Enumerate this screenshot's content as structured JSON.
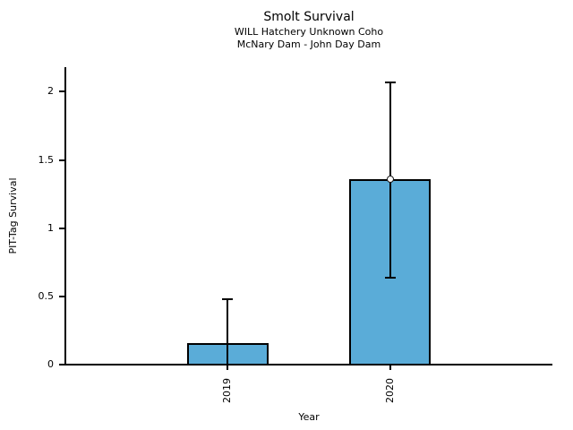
{
  "chart_data": {
    "type": "bar",
    "title": "Smolt Survival",
    "subtitle1": "WILL Hatchery Unknown Coho",
    "subtitle2": "McNary Dam - John Day Dam",
    "xlabel": "Year",
    "ylabel": "PIT-Tag Survival",
    "categories": [
      "2019",
      "2020"
    ],
    "values": [
      0.16,
      1.36
    ],
    "error_bars": [
      {
        "low": 0.0,
        "high": 0.48,
        "cap_low": false,
        "cap_high": true
      },
      {
        "low": 0.64,
        "high": 2.07,
        "cap_low": true,
        "cap_high": true
      }
    ],
    "markers": [
      false,
      true
    ],
    "bar_color": "#5AACD8",
    "edge_color": "#000000",
    "x_positions": [
      0,
      1
    ],
    "xlim": [
      -1,
      2
    ],
    "bar_width": 0.5,
    "ylim": [
      0,
      2.18
    ],
    "yticks": [
      0,
      0.5,
      1,
      1.5,
      2
    ],
    "ytick_labels": [
      "0",
      "0.5",
      "1",
      "1.5",
      "2"
    ],
    "grid": false,
    "legend": null
  }
}
